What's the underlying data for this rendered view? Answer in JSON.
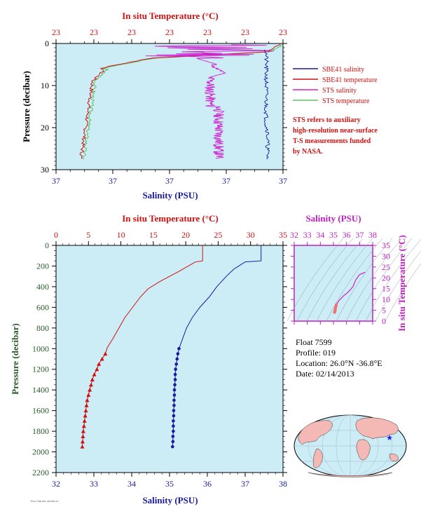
{
  "charts": {
    "top": {
      "type": "line",
      "title_top_axis": "In situ Temperature (°C)",
      "xlabel": "Salinity (PSU)",
      "ylabel": "Pressure (decibar)",
      "top_ticks": [
        "23",
        "23",
        "23",
        "23",
        "23",
        "23",
        "23"
      ],
      "bottom_ticks": [
        "37",
        "37",
        "37",
        "37",
        "37"
      ],
      "y_ticks": [
        "0",
        "10",
        "20",
        "30"
      ],
      "ylim": [
        30,
        0
      ],
      "legend": [
        {
          "label": "SBE41 salinity",
          "color": "#1a1aa0"
        },
        {
          "label": "SBE41 temperature",
          "color": "#d01010"
        },
        {
          "label": "STS salinity",
          "color": "#d020d0"
        },
        {
          "label": "STS temperature",
          "color": "#60c060"
        }
      ],
      "note": [
        "STS refers to auxiliary",
        "high-resolution near-surface",
        "T-S measurements funded",
        "by NASA."
      ]
    },
    "main": {
      "type": "line",
      "title_top_axis": "In situ Temperature (°C)",
      "xlabel": "Salinity (PSU)",
      "ylabel": "Pressure (decibar)",
      "salinity_range": [
        32,
        38
      ],
      "temperature_range": [
        0,
        35
      ],
      "pressure_range": [
        2200,
        0
      ],
      "salinity_ticks": [
        "32",
        "33",
        "34",
        "35",
        "36",
        "37",
        "38"
      ],
      "temperature_ticks": [
        "0",
        "5",
        "10",
        "15",
        "20",
        "25",
        "30",
        "35"
      ],
      "pressure_ticks": [
        "0",
        "200",
        "400",
        "600",
        "800",
        "1000",
        "1200",
        "1400",
        "1600",
        "1800",
        "2000",
        "2200"
      ],
      "series": [
        {
          "name": "SBE41 temperature",
          "color": "#d01010",
          "points": [
            [
              22.6,
              0
            ],
            [
              22.6,
              150
            ],
            [
              21.5,
              160
            ],
            [
              19,
              250
            ],
            [
              16,
              350
            ],
            [
              14.2,
              420
            ],
            [
              13,
              500
            ],
            [
              11.8,
              600
            ],
            [
              10.6,
              700
            ],
            [
              9.7,
              800
            ],
            [
              8.8,
              900
            ],
            [
              7.9,
              990
            ],
            [
              7.6,
              1050
            ],
            [
              7.1,
              1100
            ],
            [
              6.6,
              1150
            ],
            [
              6.3,
              1200
            ],
            [
              5.9,
              1250
            ],
            [
              5.6,
              1300
            ],
            [
              5.4,
              1350
            ],
            [
              5.2,
              1400
            ],
            [
              5.0,
              1450
            ],
            [
              4.8,
              1500
            ],
            [
              4.7,
              1550
            ],
            [
              4.6,
              1600
            ],
            [
              4.5,
              1650
            ],
            [
              4.4,
              1700
            ],
            [
              4.3,
              1750
            ],
            [
              4.2,
              1800
            ],
            [
              4.15,
              1850
            ],
            [
              4.1,
              1900
            ],
            [
              4.05,
              1950
            ]
          ],
          "markers_from_pressure": 1000
        },
        {
          "name": "SBE41 salinity",
          "color": "#1a1aa0",
          "points": [
            [
              37.42,
              0
            ],
            [
              37.42,
              150
            ],
            [
              37.0,
              160
            ],
            [
              36.7,
              230
            ],
            [
              36.5,
              300
            ],
            [
              36.25,
              400
            ],
            [
              36.05,
              500
            ],
            [
              35.8,
              600
            ],
            [
              35.6,
              700
            ],
            [
              35.45,
              800
            ],
            [
              35.35,
              900
            ],
            [
              35.25,
              1000
            ],
            [
              35.22,
              1050
            ],
            [
              35.2,
              1100
            ],
            [
              35.18,
              1150
            ],
            [
              35.16,
              1200
            ],
            [
              35.15,
              1250
            ],
            [
              35.15,
              1300
            ],
            [
              35.14,
              1350
            ],
            [
              35.13,
              1400
            ],
            [
              35.13,
              1450
            ],
            [
              35.12,
              1500
            ],
            [
              35.12,
              1550
            ],
            [
              35.11,
              1600
            ],
            [
              35.11,
              1650
            ],
            [
              35.1,
              1700
            ],
            [
              35.1,
              1750
            ],
            [
              35.1,
              1800
            ],
            [
              35.09,
              1850
            ],
            [
              35.09,
              1900
            ],
            [
              35.08,
              1950
            ]
          ],
          "markers_from_pressure": 1000
        }
      ]
    },
    "ts": {
      "type": "scatter",
      "title_top_axis": "Salinity (PSU)",
      "ylabel": "In situ Temperature (°C)",
      "x_ticks": [
        "32",
        "33",
        "34",
        "35",
        "36",
        "37",
        "38"
      ],
      "y_ticks": [
        "0",
        "5",
        "10",
        "15",
        "20",
        "25",
        "30",
        "35"
      ],
      "xlim": [
        32,
        38
      ],
      "ylim": [
        0,
        35
      ]
    }
  },
  "float_info": {
    "float": "Float  7599",
    "profile": "Profile:  019",
    "location": "Location:  26.0°N  -36.8°E",
    "date": "Date:  02/14/2013"
  },
  "footer": "Float 7599 019, 2013/02/14",
  "colors": {
    "plot_bg": "#ccecf6",
    "red": "#d01010",
    "blue": "#1a1aa0",
    "magenta": "#d020d0",
    "green": "#60c060"
  }
}
